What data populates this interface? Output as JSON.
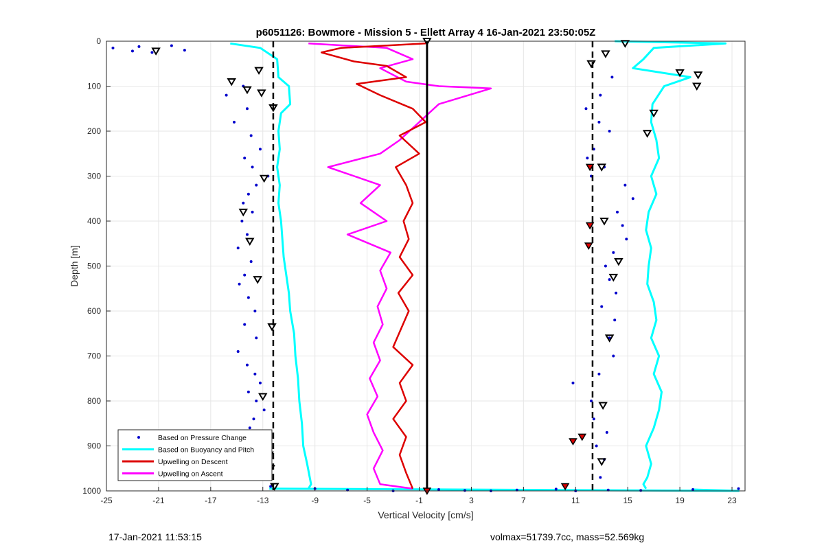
{
  "figure": {
    "footer_left": "17-Jan-2021 11:53:15",
    "footer_right": "volmax=51739.7cc, mass=52.569kg"
  },
  "chart_data": {
    "type": "line",
    "title": "p6051126: Bowmore - Mission 5 - Ellett Array 4 16-Jan-2021 23:50:05Z",
    "xlabel": "Vertical Velocity [cm/s]",
    "ylabel": "Depth [m]",
    "xlim": [
      -25,
      24
    ],
    "ylim": [
      0,
      1000
    ],
    "y_reversed": true,
    "grid": true,
    "xticks": [
      -25,
      -21,
      -17,
      -13,
      -9,
      -5,
      -1,
      3,
      7,
      11,
      15,
      19,
      23
    ],
    "yticks": [
      0,
      100,
      200,
      300,
      400,
      500,
      600,
      700,
      800,
      900,
      1000
    ],
    "legend_position": "bottom-left",
    "colors": {
      "pressure": "#0000cc",
      "buoyancy": "#00ffff",
      "descent": "#dd0000",
      "ascent": "#ff00ff",
      "reference": "#000000",
      "grid": "#e6e6e6"
    },
    "reference_lines": [
      {
        "style": "dashed",
        "x": -12.2
      },
      {
        "style": "dashed",
        "x": 12.3
      },
      {
        "style": "solid",
        "x": -0.4
      }
    ],
    "series": [
      {
        "name": "Based on Pressure Change",
        "style": "points",
        "groups": [
          {
            "x": [
              -14.5,
              -15.8,
              -14.2,
              -15.2,
              -13.9,
              -13.2,
              -14.4,
              -13.8,
              -12.6,
              -13.5,
              -14.1,
              -14.5,
              -13.8,
              -14.6,
              -14.2,
              -14.9,
              -13.9,
              -14.4,
              -14.8,
              -14.1,
              -13.6,
              -14.4,
              -13.5,
              -14.9,
              -14.2,
              -13.6,
              -13.2,
              -14.1,
              -13.5,
              -12.9,
              -13.7,
              -14.0,
              -13.4,
              -12.8,
              -13.1,
              -12.6,
              -12.4
            ],
            "y": [
              100,
              120,
              150,
              180,
              210,
              240,
              260,
              280,
              300,
              320,
              340,
              360,
              380,
              400,
              430,
              460,
              490,
              520,
              540,
              570,
              600,
              630,
              660,
              690,
              720,
              740,
              760,
              780,
              800,
              820,
              840,
              860,
              880,
              900,
              930,
              960,
              990
            ]
          },
          {
            "x": [
              13.8,
              12.9,
              11.8,
              12.8,
              13.6,
              12.4,
              11.9,
              13.2,
              12.2,
              14.8,
              15.4,
              14.2,
              14.6,
              14.9,
              13.9,
              13.3,
              13.6,
              14.1,
              13.0,
              14.0,
              13.6,
              13.9,
              12.8,
              10.8,
              12.2,
              12.4,
              13.4,
              12.6,
              13.2,
              12.9
            ],
            "y": [
              80,
              120,
              150,
              180,
              200,
              240,
              260,
              280,
              300,
              320,
              350,
              380,
              410,
              440,
              470,
              500,
              530,
              560,
              590,
              620,
              660,
              700,
              740,
              760,
              800,
              840,
              870,
              900,
              930,
              970
            ]
          },
          {
            "x": [
              -24.5,
              -23.0,
              -21.5,
              -19.0,
              -20.0,
              -22.5
            ],
            "y": [
              15,
              22,
              25,
              20,
              10,
              12
            ]
          },
          {
            "x": [
              -9.0,
              -6.5,
              -3.0,
              0.5,
              2.5,
              4.5,
              6.5,
              9.5,
              11.0,
              13.5,
              16.0,
              20.0,
              23.5
            ],
            "y": [
              995,
              998,
              1000,
              997,
              999,
              1000,
              998,
              996,
              1000,
              998,
              999,
              997,
              995
            ]
          }
        ]
      },
      {
        "name": "Based on Buoyancy and Pitch",
        "style": "line",
        "segments": [
          {
            "x": [
              -15.5,
              -13.2,
              -11.9,
              -11.8,
              -11.0,
              -10.9,
              -11.6,
              -11.8,
              -11.7,
              -11.9,
              -11.7,
              -11.8,
              -11.6,
              -11.5,
              -11.4,
              -11.2,
              -11.0,
              -10.9,
              -10.6,
              -10.5,
              -10.3,
              -10.2,
              -10.0,
              -9.9,
              -9.6,
              -9.4,
              -9.3,
              -9.5
            ],
            "y": [
              5,
              15,
              40,
              80,
              100,
              140,
              160,
              200,
              240,
              280,
              320,
              360,
              400,
              440,
              480,
              520,
              560,
              600,
              650,
              700,
              750,
              800,
              850,
              900,
              940,
              970,
              985,
              995
            ]
          },
          {
            "x": [
              -12.5,
              23.5,
              20.0
            ],
            "y": [
              995,
              1000,
              997
            ]
          },
          {
            "x": [
              14.0,
              22.5,
              17.0,
              16.2,
              15.4,
              19.8,
              17.8,
              16.9,
              16.8,
              17.2,
              17.4,
              16.8,
              17.2,
              16.6,
              16.4,
              16.8,
              16.6,
              16.5,
              17.0,
              17.2,
              16.8,
              17.4,
              17.0,
              17.6,
              17.4,
              17.0,
              16.4,
              16.8,
              16.5,
              16.2,
              16.4
            ],
            "y": [
              0,
              5,
              15,
              40,
              60,
              80,
              100,
              140,
              180,
              220,
              260,
              300,
              340,
              380,
              420,
              460,
              500,
              540,
              580,
              620,
              660,
              700,
              740,
              780,
              820,
              860,
              900,
              940,
              970,
              985,
              995
            ]
          }
        ]
      },
      {
        "name": "Upwelling on Descent",
        "style": "line",
        "x": [
          -0.5,
          -7.0,
          -8.5,
          -6.0,
          -3.5,
          -2.0,
          -5.8,
          -4.0,
          -1.5,
          -0.5,
          -2.5,
          -1.0,
          -2.8,
          -2.0,
          -1.5,
          -2.2,
          -1.8,
          -2.5,
          -1.5,
          -2.6,
          -1.8,
          -2.4,
          -3.0,
          -1.5,
          -2.5,
          -2.0,
          -3.0,
          -2.0,
          -2.5,
          -2.0,
          -1.5
        ],
        "y": [
          5,
          15,
          25,
          45,
          55,
          80,
          95,
          120,
          150,
          180,
          210,
          250,
          280,
          320,
          360,
          400,
          440,
          480,
          520,
          560,
          600,
          640,
          680,
          720,
          760,
          800,
          840,
          880,
          920,
          960,
          995
        ]
      },
      {
        "name": "Upwelling on Ascent",
        "style": "line",
        "x": [
          -9.5,
          -3.5,
          -1.5,
          -4.0,
          -2.0,
          0.5,
          4.5,
          0.5,
          -1.0,
          -2.5,
          -4.0,
          -8.0,
          -4.0,
          -5.5,
          -3.5,
          -6.5,
          -3.2,
          -4.0,
          -3.5,
          -4.2,
          -3.8,
          -4.5,
          -4.0,
          -4.8,
          -4.2,
          -5.0,
          -4.5,
          -3.8,
          -4.5,
          -4.0,
          -1.5
        ],
        "y": [
          5,
          15,
          40,
          60,
          90,
          100,
          105,
          140,
          180,
          220,
          250,
          280,
          320,
          360,
          400,
          430,
          470,
          510,
          550,
          590,
          630,
          670,
          710,
          750,
          790,
          830,
          870,
          910,
          950,
          985,
          995
        ]
      }
    ],
    "markers": {
      "open_triangles": {
        "x": [
          -21.2,
          -13.3,
          -15.4,
          -14.2,
          -13.1,
          -12.2,
          -12.9,
          -14.5,
          -14.0,
          -13.4,
          -12.3,
          -13.0,
          -13.3,
          -12.5,
          -12.4,
          -12.1,
          12.2,
          14.8,
          13.3,
          19.0,
          20.4,
          20.3,
          17.0,
          16.5,
          13.0,
          13.2,
          14.3,
          13.9,
          13.6,
          13.1,
          13.0,
          -0.4
        ],
        "y": [
          22,
          65,
          90,
          108,
          115,
          148,
          305,
          380,
          445,
          530,
          635,
          790,
          890,
          920,
          950,
          990,
          50,
          5,
          28,
          70,
          75,
          100,
          160,
          205,
          280,
          400,
          490,
          525,
          660,
          810,
          935,
          0
        ]
      },
      "filled_triangles": {
        "x": [
          12.1,
          12.1,
          12.0,
          10.8,
          11.5,
          10.2,
          -0.4
        ],
        "y": [
          280,
          410,
          455,
          890,
          880,
          990,
          1000
        ]
      }
    }
  }
}
